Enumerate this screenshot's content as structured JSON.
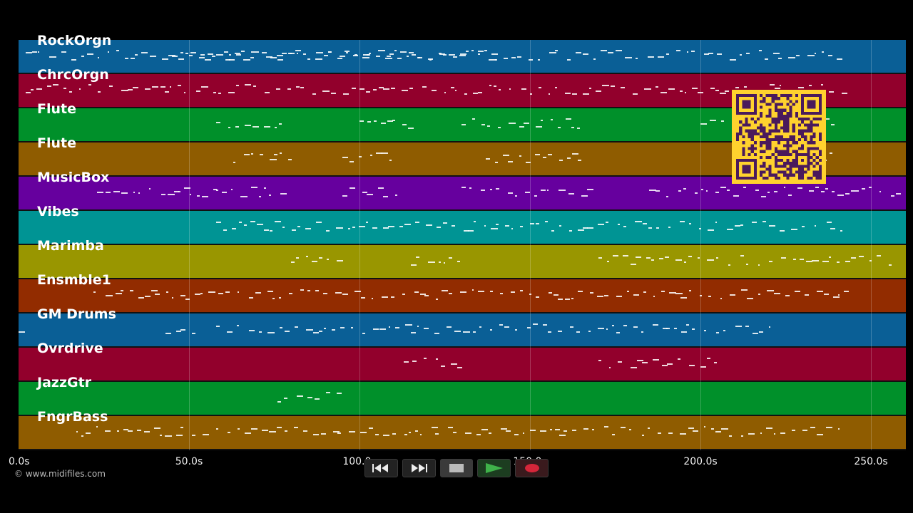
{
  "tracks": [
    {
      "label": "RockOrgn",
      "color": "#0a5f96"
    },
    {
      "label": "ChrcOrgn",
      "color": "#92002c"
    },
    {
      "label": "Flute",
      "color": "#00902a"
    },
    {
      "label": "Flute",
      "color": "#8f5c00"
    },
    {
      "label": "MusicBox",
      "color": "#66009e"
    },
    {
      "label": "Vibes",
      "color": "#009494"
    },
    {
      "label": "Marimba",
      "color": "#999600"
    },
    {
      "label": "Ensmble1",
      "color": "#922c00"
    },
    {
      "label": "GM Drums",
      "color": "#0a5f96"
    },
    {
      "label": "Ovrdrive",
      "color": "#92002c"
    },
    {
      "label": "JazzGtr",
      "color": "#00902a"
    },
    {
      "label": "FngrBass",
      "color": "#8f5c00"
    }
  ],
  "timeline": {
    "ticks": [
      "0.0s",
      "50.0s",
      "100.0s",
      "150.0s",
      "200.0s",
      "250.0s"
    ],
    "max_seconds": 260
  },
  "copyright": "© www.midifiles.com",
  "transport": {
    "rewind": "rewind-icon",
    "fast_forward": "fast-forward-icon",
    "stop": "stop-icon",
    "play": "play-icon",
    "record": "record-icon"
  },
  "colors": {
    "background": "#000000",
    "play": "#3fb24a",
    "record": "#d6263a",
    "qr": "#ffd22e"
  }
}
